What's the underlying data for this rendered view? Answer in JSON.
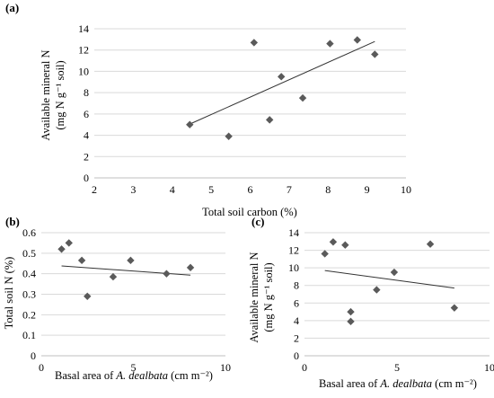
{
  "chart_data": [
    {
      "panel": "(a)",
      "type": "scatter",
      "xlabel": "Total soil carbon (%)",
      "ylabel_line1": "Available mineral N",
      "ylabel_line2": "(mg N g⁻¹ soil)",
      "xlim": [
        2,
        10
      ],
      "ylim": [
        0,
        14
      ],
      "xticks": [
        2,
        3,
        4,
        5,
        6,
        7,
        8,
        9,
        10
      ],
      "yticks": [
        0,
        2,
        4,
        6,
        8,
        10,
        12,
        14
      ],
      "points": [
        {
          "x": 4.45,
          "y": 5.0
        },
        {
          "x": 5.45,
          "y": 3.9
        },
        {
          "x": 6.1,
          "y": 12.7
        },
        {
          "x": 6.5,
          "y": 5.45
        },
        {
          "x": 6.8,
          "y": 9.5
        },
        {
          "x": 7.35,
          "y": 7.5
        },
        {
          "x": 8.05,
          "y": 12.6
        },
        {
          "x": 8.75,
          "y": 12.95
        },
        {
          "x": 9.2,
          "y": 11.6
        }
      ],
      "trendline": [
        {
          "x": 4.45,
          "y": 5.05
        },
        {
          "x": 9.2,
          "y": 12.8
        }
      ],
      "marker_color": "#5a5a5a",
      "line_color": "#333333"
    },
    {
      "panel": "(b)",
      "type": "scatter",
      "xlabel_prefix": "Basal area of ",
      "xlabel_italic": "A. dealbata",
      "xlabel_suffix": " (cm m⁻²)",
      "ylabel": "Total soil N (%)",
      "xlim": [
        0,
        10
      ],
      "ylim": [
        0,
        0.6
      ],
      "xticks": [
        0,
        5,
        10
      ],
      "yticks": [
        "0",
        "0.1",
        "0.2",
        "0.3",
        "0.4",
        "0.5",
        "0.6"
      ],
      "points": [
        {
          "x": 1.1,
          "y": 0.52
        },
        {
          "x": 1.5,
          "y": 0.55
        },
        {
          "x": 2.2,
          "y": 0.465
        },
        {
          "x": 2.5,
          "y": 0.29
        },
        {
          "x": 3.9,
          "y": 0.385
        },
        {
          "x": 4.85,
          "y": 0.465
        },
        {
          "x": 6.8,
          "y": 0.4
        },
        {
          "x": 8.1,
          "y": 0.43
        }
      ],
      "trendline": [
        {
          "x": 1.1,
          "y": 0.438
        },
        {
          "x": 8.1,
          "y": 0.393
        }
      ],
      "marker_color": "#5a5a5a",
      "line_color": "#333333"
    },
    {
      "panel": "(c)",
      "type": "scatter",
      "xlabel_prefix": "Basal area of ",
      "xlabel_italic": "A. dealbata",
      "xlabel_suffix": " (cm m⁻²)",
      "ylabel_line1": "Available mineral N",
      "ylabel_line2": "(mg N g⁻¹ soil)",
      "xlim": [
        0,
        10
      ],
      "ylim": [
        0,
        14
      ],
      "xticks": [
        0,
        5,
        10
      ],
      "yticks": [
        0,
        2,
        4,
        6,
        8,
        10,
        12,
        14
      ],
      "points": [
        {
          "x": 1.1,
          "y": 11.6
        },
        {
          "x": 1.55,
          "y": 12.95
        },
        {
          "x": 2.2,
          "y": 12.6
        },
        {
          "x": 2.5,
          "y": 5.0
        },
        {
          "x": 2.5,
          "y": 3.9
        },
        {
          "x": 3.9,
          "y": 7.5
        },
        {
          "x": 4.85,
          "y": 9.5
        },
        {
          "x": 6.8,
          "y": 12.7
        },
        {
          "x": 8.1,
          "y": 5.45
        }
      ],
      "trendline": [
        {
          "x": 1.1,
          "y": 9.7
        },
        {
          "x": 8.1,
          "y": 7.7
        }
      ],
      "marker_color": "#5a5a5a",
      "line_color": "#333333"
    }
  ]
}
